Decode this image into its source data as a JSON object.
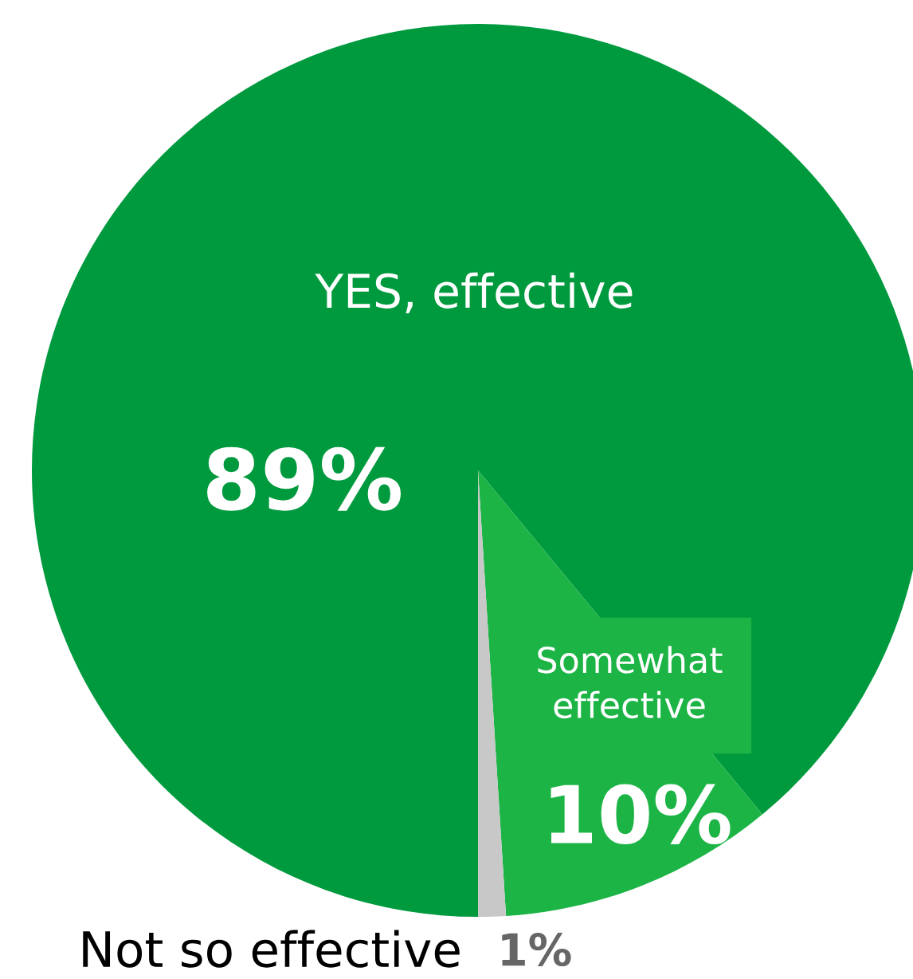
{
  "chart_data": {
    "type": "pie",
    "categories": [
      "YES, effective",
      "Somewhat effective",
      "Not so effective"
    ],
    "values": [
      89,
      10,
      1
    ],
    "colors": [
      "#009a3e",
      "#1db446",
      "#c8c8c8"
    ],
    "value_labels": [
      "89%",
      "10%",
      "1%"
    ]
  }
}
